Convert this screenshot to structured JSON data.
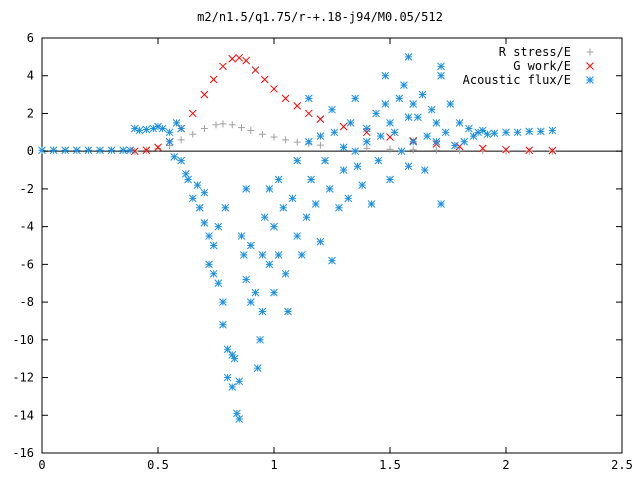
{
  "chart_data": {
    "type": "scatter",
    "title": "m2/n1.5/q1.75/r-+.18-j94/M0.05/512",
    "xlabel": "",
    "ylabel": "",
    "xlim": [
      0,
      2.5
    ],
    "ylim": [
      -16,
      6
    ],
    "x_ticks": [
      0,
      0.5,
      1,
      1.5,
      2,
      2.5
    ],
    "x_tick_labels": [
      "0",
      "0.5",
      "1",
      "1.5",
      "2",
      "2.5"
    ],
    "y_ticks": [
      -16,
      -14,
      -12,
      -10,
      -8,
      -6,
      -4,
      -2,
      0,
      2,
      4,
      6
    ],
    "y_tick_labels": [
      "-16",
      "-14",
      "-12",
      "-10",
      "-8",
      "-6",
      "-4",
      "-2",
      "0",
      "2",
      "4",
      "6"
    ],
    "grid": false,
    "legend_position": "top-right",
    "series": [
      {
        "name": "R stress/E",
        "marker": "+",
        "color": "#a0a0a0",
        "points": [
          [
            0.4,
            0.0
          ],
          [
            0.45,
            0.05
          ],
          [
            0.5,
            0.15
          ],
          [
            0.55,
            0.3
          ],
          [
            0.6,
            0.6
          ],
          [
            0.65,
            0.9
          ],
          [
            0.7,
            1.2
          ],
          [
            0.75,
            1.4
          ],
          [
            0.78,
            1.45
          ],
          [
            0.82,
            1.4
          ],
          [
            0.86,
            1.25
          ],
          [
            0.9,
            1.1
          ],
          [
            0.95,
            0.9
          ],
          [
            1.0,
            0.75
          ],
          [
            1.05,
            0.6
          ],
          [
            1.1,
            0.48
          ],
          [
            1.15,
            0.4
          ],
          [
            1.2,
            0.32
          ],
          [
            1.3,
            0.22
          ],
          [
            1.4,
            0.15
          ],
          [
            1.5,
            0.1
          ],
          [
            1.6,
            0.07
          ],
          [
            1.7,
            0.05
          ],
          [
            1.8,
            0.03
          ],
          [
            1.9,
            0.02
          ],
          [
            2.0,
            0.01
          ],
          [
            2.1,
            0.0
          ],
          [
            2.2,
            0.0
          ]
        ]
      },
      {
        "name": "G work/E",
        "marker": "x",
        "color": "#ff0000",
        "points": [
          [
            0.4,
            0.0
          ],
          [
            0.45,
            0.05
          ],
          [
            0.5,
            0.2
          ],
          [
            0.55,
            0.5
          ],
          [
            0.6,
            1.2
          ],
          [
            0.65,
            2.0
          ],
          [
            0.7,
            3.0
          ],
          [
            0.74,
            3.8
          ],
          [
            0.78,
            4.5
          ],
          [
            0.82,
            4.9
          ],
          [
            0.85,
            4.95
          ],
          [
            0.88,
            4.8
          ],
          [
            0.92,
            4.3
          ],
          [
            0.96,
            3.8
          ],
          [
            1.0,
            3.3
          ],
          [
            1.05,
            2.8
          ],
          [
            1.1,
            2.4
          ],
          [
            1.15,
            2.0
          ],
          [
            1.2,
            1.7
          ],
          [
            1.3,
            1.3
          ],
          [
            1.4,
            1.0
          ],
          [
            1.5,
            0.75
          ],
          [
            1.6,
            0.55
          ],
          [
            1.7,
            0.38
          ],
          [
            1.8,
            0.25
          ],
          [
            1.9,
            0.15
          ],
          [
            2.0,
            0.08
          ],
          [
            2.1,
            0.05
          ],
          [
            2.2,
            0.03
          ]
        ]
      },
      {
        "name": "Acoustic flux/E",
        "marker": "*",
        "color": "#1a90e0",
        "points": [
          [
            0.0,
            0.05
          ],
          [
            0.05,
            0.05
          ],
          [
            0.1,
            0.05
          ],
          [
            0.15,
            0.05
          ],
          [
            0.2,
            0.05
          ],
          [
            0.25,
            0.05
          ],
          [
            0.3,
            0.05
          ],
          [
            0.35,
            0.05
          ],
          [
            0.38,
            0.05
          ],
          [
            0.4,
            1.2
          ],
          [
            0.42,
            1.1
          ],
          [
            0.45,
            1.15
          ],
          [
            0.48,
            1.2
          ],
          [
            0.5,
            1.3
          ],
          [
            0.52,
            1.2
          ],
          [
            0.55,
            1.0
          ],
          [
            0.58,
            1.5
          ],
          [
            0.6,
            1.2
          ],
          [
            0.55,
            0.5
          ],
          [
            0.57,
            -0.3
          ],
          [
            0.6,
            -0.5
          ],
          [
            0.62,
            -1.2
          ],
          [
            0.63,
            -1.5
          ],
          [
            0.65,
            -2.5
          ],
          [
            0.67,
            -1.8
          ],
          [
            0.68,
            -3.0
          ],
          [
            0.7,
            -2.2
          ],
          [
            0.7,
            -3.8
          ],
          [
            0.72,
            -4.5
          ],
          [
            0.72,
            -6.0
          ],
          [
            0.74,
            -5.0
          ],
          [
            0.74,
            -6.5
          ],
          [
            0.76,
            -4.0
          ],
          [
            0.76,
            -7.0
          ],
          [
            0.78,
            -8.0
          ],
          [
            0.78,
            -9.2
          ],
          [
            0.79,
            -3.0
          ],
          [
            0.8,
            -10.5
          ],
          [
            0.8,
            -12.0
          ],
          [
            0.82,
            -10.8
          ],
          [
            0.82,
            -12.5
          ],
          [
            0.83,
            -11.0
          ],
          [
            0.84,
            -13.9
          ],
          [
            0.85,
            -14.2
          ],
          [
            0.85,
            -12.2
          ],
          [
            0.86,
            -4.5
          ],
          [
            0.87,
            -5.5
          ],
          [
            0.88,
            -6.8
          ],
          [
            0.88,
            -2.0
          ],
          [
            0.9,
            -5.0
          ],
          [
            0.9,
            -8.0
          ],
          [
            0.92,
            -7.5
          ],
          [
            0.93,
            -11.5
          ],
          [
            0.94,
            -10.0
          ],
          [
            0.95,
            -5.5
          ],
          [
            0.95,
            -8.5
          ],
          [
            0.96,
            -3.5
          ],
          [
            0.98,
            -6.0
          ],
          [
            0.98,
            -2.0
          ],
          [
            1.0,
            -4.0
          ],
          [
            1.0,
            -7.5
          ],
          [
            1.02,
            -5.5
          ],
          [
            1.02,
            -1.5
          ],
          [
            1.04,
            -3.0
          ],
          [
            1.05,
            -6.5
          ],
          [
            1.06,
            -8.5
          ],
          [
            1.08,
            -2.5
          ],
          [
            1.1,
            -4.5
          ],
          [
            1.1,
            -0.5
          ],
          [
            1.12,
            -5.5
          ],
          [
            1.14,
            -3.5
          ],
          [
            1.15,
            0.5
          ],
          [
            1.16,
            -1.5
          ],
          [
            1.18,
            -2.8
          ],
          [
            1.2,
            -4.8
          ],
          [
            1.2,
            0.8
          ],
          [
            1.22,
            -0.5
          ],
          [
            1.24,
            -2.0
          ],
          [
            1.25,
            -5.8
          ],
          [
            1.26,
            1.0
          ],
          [
            1.28,
            -3.0
          ],
          [
            1.3,
            -1.0
          ],
          [
            1.3,
            0.2
          ],
          [
            1.32,
            -2.5
          ],
          [
            1.33,
            1.5
          ],
          [
            1.35,
            0.0
          ],
          [
            1.36,
            -0.8
          ],
          [
            1.38,
            -1.8
          ],
          [
            1.4,
            0.5
          ],
          [
            1.4,
            1.2
          ],
          [
            1.42,
            -2.8
          ],
          [
            1.44,
            2.0
          ],
          [
            1.45,
            -0.5
          ],
          [
            1.46,
            0.8
          ],
          [
            1.48,
            2.5
          ],
          [
            1.5,
            1.5
          ],
          [
            1.5,
            -1.5
          ],
          [
            1.52,
            1.0
          ],
          [
            1.54,
            2.8
          ],
          [
            1.55,
            0.0
          ],
          [
            1.56,
            3.5
          ],
          [
            1.58,
            1.8
          ],
          [
            1.58,
            -0.8
          ],
          [
            1.6,
            2.5
          ],
          [
            1.6,
            0.5
          ],
          [
            1.62,
            1.8
          ],
          [
            1.64,
            3.0
          ],
          [
            1.65,
            -1.0
          ],
          [
            1.66,
            0.8
          ],
          [
            1.68,
            2.2
          ],
          [
            1.7,
            0.5
          ],
          [
            1.7,
            1.5
          ],
          [
            1.72,
            4.0
          ],
          [
            1.72,
            -2.8
          ],
          [
            1.74,
            1.0
          ],
          [
            1.76,
            2.5
          ],
          [
            1.78,
            0.3
          ],
          [
            1.8,
            1.5
          ],
          [
            1.82,
            0.5
          ],
          [
            1.84,
            1.2
          ],
          [
            1.86,
            0.8
          ],
          [
            1.88,
            1.0
          ],
          [
            1.9,
            1.1
          ],
          [
            1.92,
            0.9
          ],
          [
            1.95,
            0.95
          ],
          [
            2.0,
            1.0
          ],
          [
            2.05,
            1.0
          ],
          [
            2.1,
            1.05
          ],
          [
            2.15,
            1.05
          ],
          [
            2.2,
            1.1
          ],
          [
            1.58,
            5.0
          ],
          [
            1.72,
            4.5
          ],
          [
            1.48,
            4.0
          ],
          [
            1.35,
            2.8
          ],
          [
            1.25,
            2.2
          ],
          [
            1.15,
            2.8
          ]
        ]
      }
    ]
  }
}
